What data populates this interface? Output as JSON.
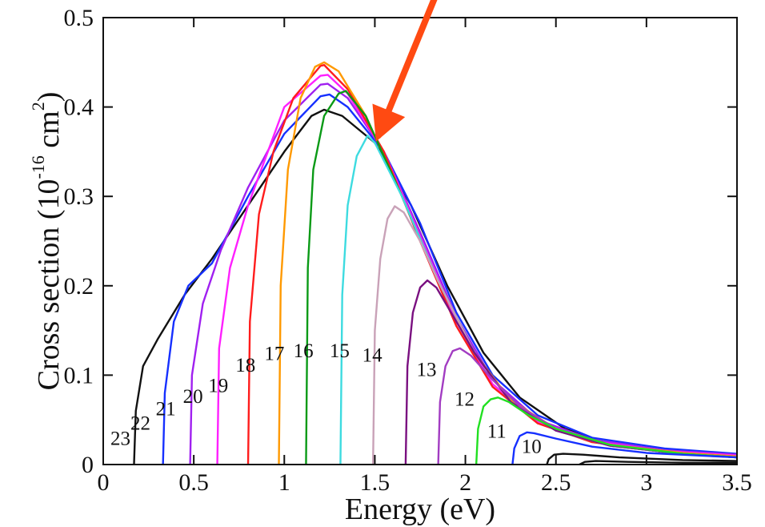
{
  "chart_data": {
    "type": "line",
    "xlabel": "Energy (eV)",
    "ylabel_parts": {
      "prefix": "Cross section (10",
      "exp1": "-16",
      "middle": " cm",
      "exp2": "2",
      "suffix": ")"
    },
    "xlim": [
      0,
      3.5
    ],
    "ylim": [
      0,
      0.5
    ],
    "x_ticks": [
      "0",
      "0.5",
      "1",
      "1.5",
      "2",
      "2.5",
      "3",
      "3.5"
    ],
    "y_ticks": [
      "0",
      "0.1",
      "0.2",
      "0.3",
      "0.4",
      "0.5"
    ],
    "grid": false,
    "legend": "none",
    "annotations": [
      {
        "type": "arrow",
        "color": "#ff4a12",
        "from": [
          2.25,
          0.73
        ],
        "to": [
          1.52,
          0.368
        ]
      }
    ],
    "series": [
      {
        "name": "23",
        "color": "#111111",
        "values": [
          [
            0.17,
            0.0
          ],
          [
            0.18,
            0.06
          ],
          [
            0.22,
            0.11
          ],
          [
            0.3,
            0.14
          ],
          [
            0.45,
            0.19
          ],
          [
            0.6,
            0.23
          ],
          [
            0.8,
            0.29
          ],
          [
            1.0,
            0.35
          ],
          [
            1.15,
            0.39
          ],
          [
            1.22,
            0.397
          ],
          [
            1.32,
            0.39
          ],
          [
            1.5,
            0.36
          ],
          [
            1.7,
            0.29
          ],
          [
            1.9,
            0.2
          ],
          [
            2.1,
            0.125
          ],
          [
            2.3,
            0.075
          ],
          [
            2.55,
            0.04
          ],
          [
            2.8,
            0.022
          ],
          [
            3.1,
            0.014
          ],
          [
            3.5,
            0.01
          ]
        ]
      },
      {
        "name": "22",
        "color": "#1630ff",
        "values": [
          [
            0.33,
            0.0
          ],
          [
            0.34,
            0.08
          ],
          [
            0.39,
            0.16
          ],
          [
            0.47,
            0.2
          ],
          [
            0.6,
            0.225
          ],
          [
            0.8,
            0.3
          ],
          [
            1.0,
            0.37
          ],
          [
            1.2,
            0.412
          ],
          [
            1.25,
            0.414
          ],
          [
            1.35,
            0.4
          ],
          [
            1.55,
            0.35
          ],
          [
            1.75,
            0.27
          ],
          [
            1.95,
            0.17
          ],
          [
            2.15,
            0.1
          ],
          [
            2.4,
            0.055
          ],
          [
            2.7,
            0.03
          ],
          [
            3.1,
            0.018
          ],
          [
            3.5,
            0.012
          ]
        ]
      },
      {
        "name": "21",
        "color": "#a020f0",
        "values": [
          [
            0.48,
            0.0
          ],
          [
            0.49,
            0.1
          ],
          [
            0.55,
            0.18
          ],
          [
            0.65,
            0.24
          ],
          [
            0.8,
            0.31
          ],
          [
            1.0,
            0.385
          ],
          [
            1.2,
            0.425
          ],
          [
            1.24,
            0.426
          ],
          [
            1.35,
            0.41
          ],
          [
            1.55,
            0.35
          ],
          [
            1.75,
            0.26
          ],
          [
            1.95,
            0.165
          ],
          [
            2.15,
            0.095
          ],
          [
            2.4,
            0.05
          ],
          [
            2.7,
            0.028
          ],
          [
            3.1,
            0.016
          ],
          [
            3.5,
            0.011
          ]
        ]
      },
      {
        "name": "20",
        "color": "#ff20ff",
        "values": [
          [
            0.63,
            0.0
          ],
          [
            0.64,
            0.13
          ],
          [
            0.7,
            0.22
          ],
          [
            0.8,
            0.29
          ],
          [
            1.0,
            0.4
          ],
          [
            1.2,
            0.435
          ],
          [
            1.24,
            0.436
          ],
          [
            1.35,
            0.415
          ],
          [
            1.55,
            0.35
          ],
          [
            1.75,
            0.255
          ],
          [
            1.95,
            0.16
          ],
          [
            2.15,
            0.09
          ],
          [
            2.4,
            0.048
          ],
          [
            2.7,
            0.026
          ],
          [
            3.1,
            0.015
          ],
          [
            3.5,
            0.01
          ]
        ]
      },
      {
        "name": "19",
        "color": "#ff1c1c",
        "values": [
          [
            0.8,
            0.0
          ],
          [
            0.81,
            0.16
          ],
          [
            0.86,
            0.28
          ],
          [
            0.94,
            0.35
          ],
          [
            1.05,
            0.41
          ],
          [
            1.2,
            0.446
          ],
          [
            1.22,
            0.447
          ],
          [
            1.35,
            0.42
          ],
          [
            1.55,
            0.35
          ],
          [
            1.75,
            0.25
          ],
          [
            1.95,
            0.155
          ],
          [
            2.15,
            0.087
          ],
          [
            2.4,
            0.046
          ],
          [
            2.7,
            0.025
          ],
          [
            3.1,
            0.014
          ],
          [
            3.5,
            0.009
          ]
        ]
      },
      {
        "name": "18",
        "color": "#ff9900",
        "values": [
          [
            0.97,
            0.0
          ],
          [
            0.98,
            0.2
          ],
          [
            1.02,
            0.33
          ],
          [
            1.09,
            0.41
          ],
          [
            1.17,
            0.445
          ],
          [
            1.22,
            0.45
          ],
          [
            1.3,
            0.44
          ],
          [
            1.45,
            0.39
          ],
          [
            1.65,
            0.3
          ],
          [
            1.85,
            0.205
          ],
          [
            2.05,
            0.125
          ],
          [
            2.25,
            0.072
          ],
          [
            2.5,
            0.04
          ],
          [
            2.8,
            0.022
          ],
          [
            3.2,
            0.013
          ],
          [
            3.5,
            0.009
          ]
        ]
      },
      {
        "name": "17",
        "color": "#0a9a16",
        "values": [
          [
            1.12,
            0.0
          ],
          [
            1.13,
            0.22
          ],
          [
            1.16,
            0.33
          ],
          [
            1.22,
            0.39
          ],
          [
            1.3,
            0.415
          ],
          [
            1.34,
            0.418
          ],
          [
            1.45,
            0.39
          ],
          [
            1.65,
            0.3
          ],
          [
            1.85,
            0.205
          ],
          [
            2.05,
            0.125
          ],
          [
            2.25,
            0.07
          ],
          [
            2.5,
            0.038
          ],
          [
            2.8,
            0.021
          ],
          [
            3.2,
            0.012
          ],
          [
            3.5,
            0.008
          ]
        ]
      },
      {
        "name": "16",
        "color": "#3ddbe0",
        "values": [
          [
            1.31,
            0.0
          ],
          [
            1.32,
            0.19
          ],
          [
            1.35,
            0.29
          ],
          [
            1.4,
            0.345
          ],
          [
            1.46,
            0.368
          ],
          [
            1.5,
            0.36
          ],
          [
            1.65,
            0.3
          ],
          [
            1.85,
            0.205
          ],
          [
            2.05,
            0.125
          ],
          [
            2.25,
            0.07
          ],
          [
            2.5,
            0.038
          ],
          [
            2.8,
            0.021
          ],
          [
            3.2,
            0.012
          ],
          [
            3.5,
            0.008
          ]
        ]
      },
      {
        "name": "15",
        "color": "#c9a2b8",
        "values": [
          [
            1.49,
            0.0
          ],
          [
            1.5,
            0.15
          ],
          [
            1.53,
            0.23
          ],
          [
            1.57,
            0.275
          ],
          [
            1.61,
            0.289
          ],
          [
            1.66,
            0.282
          ],
          [
            1.75,
            0.25
          ],
          [
            1.85,
            0.205
          ],
          [
            2.05,
            0.125
          ],
          [
            2.25,
            0.07
          ],
          [
            2.5,
            0.038
          ],
          [
            2.8,
            0.021
          ],
          [
            3.2,
            0.012
          ],
          [
            3.5,
            0.008
          ]
        ]
      },
      {
        "name": "14",
        "color": "#7a1080",
        "values": [
          [
            1.67,
            0.0
          ],
          [
            1.68,
            0.11
          ],
          [
            1.71,
            0.17
          ],
          [
            1.75,
            0.198
          ],
          [
            1.79,
            0.206
          ],
          [
            1.84,
            0.198
          ],
          [
            1.95,
            0.16
          ],
          [
            2.05,
            0.125
          ],
          [
            2.25,
            0.07
          ],
          [
            2.5,
            0.038
          ],
          [
            2.8,
            0.021
          ],
          [
            3.2,
            0.012
          ],
          [
            3.5,
            0.008
          ]
        ]
      },
      {
        "name": "13",
        "color": "#a23cc2",
        "values": [
          [
            1.85,
            0.0
          ],
          [
            1.86,
            0.07
          ],
          [
            1.89,
            0.11
          ],
          [
            1.93,
            0.127
          ],
          [
            1.97,
            0.13
          ],
          [
            2.03,
            0.122
          ],
          [
            2.15,
            0.095
          ],
          [
            2.3,
            0.065
          ],
          [
            2.5,
            0.04
          ],
          [
            2.8,
            0.022
          ],
          [
            3.2,
            0.012
          ],
          [
            3.5,
            0.008
          ]
        ]
      },
      {
        "name": "12",
        "color": "#21e021",
        "values": [
          [
            2.06,
            0.0
          ],
          [
            2.07,
            0.04
          ],
          [
            2.1,
            0.065
          ],
          [
            2.14,
            0.073
          ],
          [
            2.18,
            0.075
          ],
          [
            2.24,
            0.07
          ],
          [
            2.35,
            0.055
          ],
          [
            2.5,
            0.04
          ],
          [
            2.8,
            0.022
          ],
          [
            3.2,
            0.012
          ],
          [
            3.5,
            0.008
          ]
        ]
      },
      {
        "name": "11",
        "color": "#1630ff",
        "values": [
          [
            2.26,
            0.0
          ],
          [
            2.27,
            0.018
          ],
          [
            2.3,
            0.032
          ],
          [
            2.34,
            0.036
          ],
          [
            2.38,
            0.035
          ],
          [
            2.5,
            0.029
          ],
          [
            2.7,
            0.02
          ],
          [
            3.0,
            0.013
          ],
          [
            3.5,
            0.008
          ]
        ]
      },
      {
        "name": "10",
        "color": "#111111",
        "values": [
          [
            2.45,
            0.0
          ],
          [
            2.46,
            0.006
          ],
          [
            2.49,
            0.011
          ],
          [
            2.54,
            0.012
          ],
          [
            2.65,
            0.011
          ],
          [
            2.85,
            0.008
          ],
          [
            3.2,
            0.005
          ],
          [
            3.5,
            0.004
          ]
        ]
      },
      {
        "name": "",
        "color": "#111111",
        "values": [
          [
            2.63,
            0.0
          ],
          [
            2.66,
            0.003
          ],
          [
            2.72,
            0.004
          ],
          [
            2.9,
            0.003
          ],
          [
            3.2,
            0.002
          ],
          [
            3.5,
            0.002
          ]
        ]
      }
    ],
    "curve_labels": [
      {
        "text": "23",
        "x": 0.04,
        "y": 0.022
      },
      {
        "text": "22",
        "x": 0.15,
        "y": 0.039
      },
      {
        "text": "21",
        "x": 0.29,
        "y": 0.055
      },
      {
        "text": "20",
        "x": 0.44,
        "y": 0.069
      },
      {
        "text": "19",
        "x": 0.58,
        "y": 0.081
      },
      {
        "text": "18",
        "x": 0.73,
        "y": 0.104
      },
      {
        "text": "17",
        "x": 0.89,
        "y": 0.117
      },
      {
        "text": "16",
        "x": 1.05,
        "y": 0.12
      },
      {
        "text": "15",
        "x": 1.25,
        "y": 0.12
      },
      {
        "text": "14",
        "x": 1.43,
        "y": 0.115
      },
      {
        "text": "13",
        "x": 1.73,
        "y": 0.099
      },
      {
        "text": "12",
        "x": 1.94,
        "y": 0.066
      },
      {
        "text": "11",
        "x": 2.12,
        "y": 0.03
      },
      {
        "text": "10",
        "x": 2.31,
        "y": 0.013
      }
    ]
  }
}
